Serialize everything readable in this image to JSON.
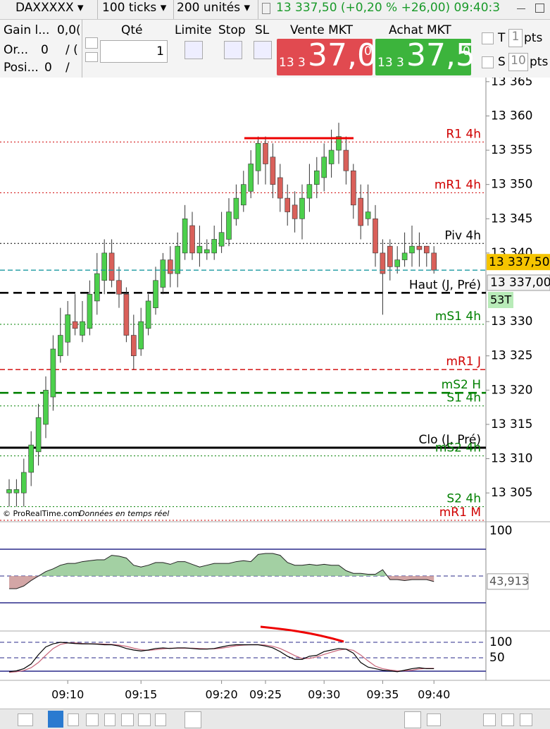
{
  "toolbar": {
    "instrument": "DAXXXXX",
    "ticks": "100 ticks",
    "units": "200 unités",
    "quote": "13 337,50 (+0,20 % +26,00) 09:40:3"
  },
  "order_panel": {
    "gain_label": "Gain l...",
    "gain_value": "0,0(",
    "orders_label": "Or...",
    "orders_value": "0",
    "orders_sep": "/ (",
    "position_label": "Posi...",
    "position_value": "0",
    "position_sep": "/",
    "qty_label": "Qté",
    "qty_value": "1",
    "limit": "Limite",
    "stop": "Stop",
    "sl": "SL",
    "sell_label": "Vente MKT",
    "sell_prefix": "13 3",
    "sell_main": "37,0",
    "sell_sup": "0",
    "buy_label": "Achat MKT",
    "buy_prefix": "13 3",
    "buy_main": "37,5",
    "buy_sup": "0",
    "t_label": "T",
    "t_value": "1",
    "t_unit": "pts",
    "s_label": "S",
    "s_value": "10",
    "s_unit": "pts"
  },
  "chart_data": [
    {
      "type": "candlestick",
      "categories": [
        null,
        null,
        null,
        null,
        null,
        null,
        null,
        null,
        null,
        null,
        null,
        null,
        null,
        null,
        null,
        null,
        null,
        null,
        null,
        null,
        null,
        null,
        null,
        null,
        null,
        null,
        null,
        null,
        null,
        null,
        null,
        null,
        null,
        null,
        null,
        null,
        null,
        null,
        null,
        null,
        null,
        null,
        null,
        null,
        null,
        null,
        null,
        null,
        null,
        null,
        null,
        null,
        null,
        null,
        null,
        null,
        null,
        null,
        null
      ],
      "open": [
        13305,
        13305,
        13305,
        13308,
        13311,
        13315,
        13319,
        13325,
        13327,
        13330,
        13328,
        13329,
        13333,
        13336,
        13340,
        13336,
        13334,
        13328,
        13326,
        13329,
        13332,
        13335,
        13339,
        13337,
        13340,
        13344,
        13340,
        13340,
        13340,
        13341,
        13342,
        13345,
        13347,
        13349,
        13352,
        13356,
        13354,
        13351,
        13348,
        13347,
        13345,
        13348,
        13350,
        13351,
        13353,
        13355,
        13355,
        13352,
        13348,
        13345,
        13345,
        13340,
        13341,
        13338,
        13339,
        13340,
        13341,
        13341,
        13340
      ],
      "high": [
        13307,
        13307,
        13310,
        13314,
        13318,
        13322,
        13328,
        13332,
        13333,
        13334,
        13333,
        13336,
        13340,
        13342,
        13342,
        13338,
        13335,
        13331,
        13332,
        13334,
        13338,
        13340,
        13341,
        13343,
        13347,
        13346,
        13344,
        13342,
        13344,
        13346,
        13348,
        13350,
        13352,
        13355,
        13357,
        13357,
        13356,
        13353,
        13350,
        13349,
        13350,
        13353,
        13354,
        13356,
        13358,
        13359,
        13357,
        13353,
        13350,
        13350,
        13347,
        13342,
        13342,
        13341,
        13343,
        13344,
        13343,
        13341,
        13341
      ],
      "low": [
        13303,
        13303,
        13303,
        13306,
        13309,
        13313,
        13317,
        13324,
        13325,
        13328,
        13327,
        13328,
        13331,
        13334,
        13335,
        13332,
        13327,
        13323,
        13325,
        13328,
        13331,
        13334,
        13335,
        13335,
        13339,
        13339,
        13338,
        13339,
        13339,
        13340,
        13341,
        13344,
        13346,
        13348,
        13350,
        13350,
        13348,
        13346,
        13344,
        13343,
        13342,
        13346,
        13348,
        13349,
        13351,
        13353,
        13350,
        13345,
        13342,
        13344,
        13338,
        13331,
        13336,
        13337,
        13338,
        13338,
        13338,
        13338,
        13337
      ],
      "close": [
        13305.5,
        13305.5,
        13308,
        13312,
        13316,
        13320,
        13326,
        13328,
        13331,
        13329,
        13330,
        13334,
        13337,
        13340,
        13336,
        13334,
        13328,
        13325,
        13330,
        13333,
        13336,
        13339,
        13337,
        13341,
        13345,
        13340,
        13341,
        13340.5,
        13342,
        13343,
        13346,
        13348,
        13350,
        13353,
        13356,
        13353,
        13350,
        13348,
        13346,
        13345,
        13348,
        13350,
        13352,
        13354,
        13355,
        13357,
        13352,
        13347,
        13344,
        13346,
        13340,
        13337,
        13338,
        13339,
        13340,
        13341,
        13340.5,
        13340,
        13337.5
      ],
      "up_color": "#4cd04c",
      "down_color": "#d9605a",
      "ylim": [
        13300.8,
        13365.6
      ],
      "yticks": [
        {
          "value": 13365,
          "label": "13 365"
        },
        {
          "value": 13360,
          "label": "13 360"
        },
        {
          "value": 13355,
          "label": "13 355"
        },
        {
          "value": 13350,
          "label": "13 350"
        },
        {
          "value": 13345,
          "label": "13 345"
        },
        {
          "value": 13340,
          "label": "13 340"
        },
        {
          "value": 13330,
          "label": "13 330"
        },
        {
          "value": 13325,
          "label": "13 325"
        },
        {
          "value": 13320,
          "label": "13 320"
        },
        {
          "value": 13315,
          "label": "13 315"
        },
        {
          "value": 13310,
          "label": "13 310"
        },
        {
          "value": 13305,
          "label": "13 305"
        }
      ],
      "xticks": [
        {
          "value": 8,
          "label": "09:10"
        },
        {
          "value": 18,
          "label": "09:15"
        },
        {
          "value": 29,
          "label": "09:20"
        },
        {
          "value": 35,
          "label": "09:25"
        },
        {
          "value": 43,
          "label": "09:30"
        },
        {
          "value": 51,
          "label": "09:35"
        },
        {
          "value": 58,
          "label": "09:40"
        }
      ],
      "levels": [
        {
          "name": "R1 4h",
          "value": 13356.2,
          "color": "#d00000",
          "style": "dotted"
        },
        {
          "name": "mR1 4h",
          "value": 13348.8,
          "color": "#d00000",
          "style": "dotted"
        },
        {
          "name": "Piv 4h",
          "value": 13341.4,
          "color": "#000000",
          "style": "dotted"
        },
        {
          "name": "Haut (J, Pré)",
          "value": 13334.2,
          "color": "#000000",
          "style": "bold-dashed"
        },
        {
          "name": "mS1 4h",
          "value": 13329.6,
          "color": "#008000",
          "style": "dotted"
        },
        {
          "name": "mR1 J",
          "value": 13323.0,
          "color": "#d00000",
          "style": "dashed"
        },
        {
          "name": "mS2 H",
          "value": 13319.6,
          "color": "#008000",
          "style": "bold-dashed"
        },
        {
          "name": "S1 4h",
          "value": 13317.7,
          "color": "#008000",
          "style": "dotted"
        },
        {
          "name": "Clo (J, Pré)",
          "value": 13311.6,
          "color": "#000000",
          "style": "bold-solid"
        },
        {
          "name": "mS2 4h",
          "value": 13310.4,
          "color": "#008000",
          "style": "dotted"
        },
        {
          "name": "S2 4h",
          "value": 13303.0,
          "color": "#008000",
          "style": "dotted"
        },
        {
          "name": "mR1 M",
          "value": 13301.0,
          "color": "#d00000",
          "style": "dotted"
        }
      ],
      "last_price": {
        "value": 13337.5,
        "label": "13 337,50",
        "color": "#1a9aa0"
      },
      "tags": [
        "13 337,00",
        "53T"
      ],
      "credit": "© ProRealTime.com",
      "note": "Données en temps réel"
    },
    {
      "type": "area-oscillator",
      "values": [
        36,
        36,
        39,
        45,
        50,
        55,
        58,
        62,
        64,
        64,
        66,
        67,
        68,
        68,
        73,
        72,
        70,
        62,
        60,
        62,
        65,
        65,
        63,
        66,
        66,
        63,
        60,
        62,
        64,
        64,
        64,
        66,
        67,
        66,
        74,
        75,
        75,
        73,
        65,
        62,
        62,
        63,
        62,
        63,
        62,
        62,
        56,
        53,
        53,
        52,
        52,
        57,
        46,
        46,
        45,
        46,
        46,
        46,
        43.913
      ],
      "baseline": 50,
      "ylim": [
        -10.9,
        110.2
      ],
      "yticks": [
        100
      ],
      "last_label": "43,913",
      "up_color": "#8cc48c",
      "down_color": "#c89090"
    },
    {
      "type": "stochastic",
      "k": [
        5,
        8,
        15,
        30,
        60,
        85,
        95,
        100,
        98,
        96,
        95,
        95,
        94,
        92,
        92,
        88,
        80,
        75,
        72,
        75,
        80,
        82,
        80,
        82,
        82,
        80,
        78,
        78,
        80,
        85,
        90,
        92,
        92,
        92,
        92,
        88,
        82,
        70,
        55,
        45,
        45,
        55,
        58,
        70,
        75,
        80,
        78,
        65,
        35,
        20,
        15,
        10,
        8,
        5,
        10,
        15,
        18,
        15,
        15
      ],
      "d": [
        3,
        5,
        9,
        18,
        35,
        58,
        80,
        93,
        98,
        98,
        96,
        95,
        95,
        94,
        93,
        91,
        87,
        81,
        76,
        74,
        76,
        79,
        81,
        81,
        81,
        81,
        80,
        79,
        79,
        81,
        85,
        89,
        91,
        92,
        92,
        91,
        87,
        80,
        69,
        57,
        48,
        48,
        53,
        61,
        68,
        75,
        78,
        74,
        59,
        40,
        23,
        15,
        11,
        8,
        8,
        10,
        14,
        16,
        16
      ],
      "k_color": "#000000",
      "d_color": "#c86478",
      "ylim": [
        -22.7,
        136.4
      ],
      "yticks": [
        100,
        50
      ]
    }
  ]
}
